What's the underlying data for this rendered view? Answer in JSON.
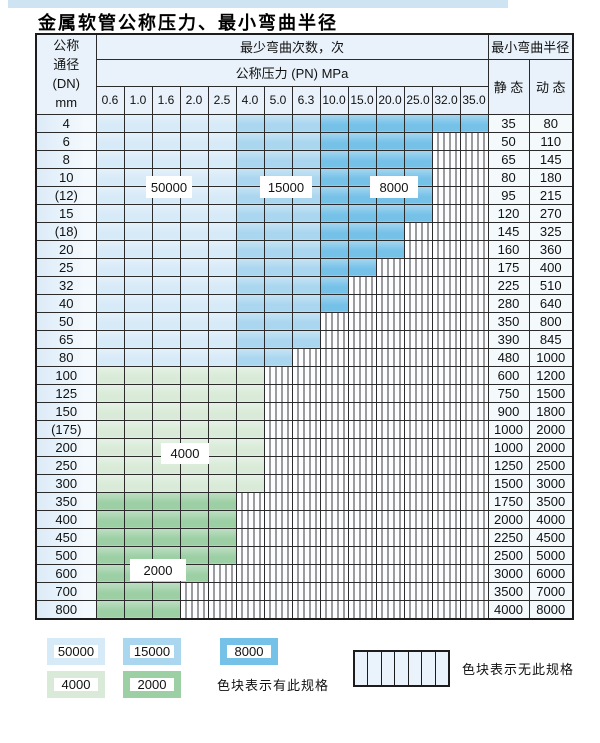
{
  "page": {
    "title": "金属软管公称压力、最小弯曲半径"
  },
  "table": {
    "header": {
      "dn_label_lines": [
        "公称",
        "通径",
        "(DN)",
        "mm"
      ],
      "bend_cycles_label": "最少弯曲次数，次",
      "pressure_label": "公称压力 (PN) MPa",
      "radius_label": "最小弯曲半径",
      "static_label": "静 态",
      "dynamic_label": "动 态",
      "pressure_columns": [
        "0.6",
        "1.0",
        "1.6",
        "2.0",
        "2.5",
        "4.0",
        "5.0",
        "6.3",
        "10.0",
        "15.0",
        "20.0",
        "25.0",
        "32.0",
        "35.0"
      ]
    },
    "cycle_zones": {
      "blue_light_cols": "0.6-2.5",
      "blue_light_cycles": "50000",
      "blue_mid_cols": "4.0-6.3",
      "blue_mid_cycles": "15000",
      "blue_dark_cols": "10.0-35.0",
      "blue_dark_cycles": "8000",
      "green_light_cycles": "4000",
      "green_dark_cycles": "2000"
    },
    "rows": [
      {
        "dn": "4",
        "static": "35",
        "dynamic": "80",
        "zone": "blue",
        "colored_through": 14
      },
      {
        "dn": "6",
        "static": "50",
        "dynamic": "110",
        "zone": "blue",
        "colored_through": 12
      },
      {
        "dn": "8",
        "static": "65",
        "dynamic": "145",
        "zone": "blue",
        "colored_through": 12
      },
      {
        "dn": "10",
        "static": "80",
        "dynamic": "180",
        "zone": "blue",
        "colored_through": 12
      },
      {
        "dn": "(12)",
        "static": "95",
        "dynamic": "215",
        "zone": "blue",
        "colored_through": 12
      },
      {
        "dn": "15",
        "static": "120",
        "dynamic": "270",
        "zone": "blue",
        "colored_through": 12
      },
      {
        "dn": "(18)",
        "static": "145",
        "dynamic": "325",
        "zone": "blue",
        "colored_through": 11
      },
      {
        "dn": "20",
        "static": "160",
        "dynamic": "360",
        "zone": "blue",
        "colored_through": 11
      },
      {
        "dn": "25",
        "static": "175",
        "dynamic": "400",
        "zone": "blue",
        "colored_through": 10
      },
      {
        "dn": "32",
        "static": "225",
        "dynamic": "510",
        "zone": "blue",
        "colored_through": 9
      },
      {
        "dn": "40",
        "static": "280",
        "dynamic": "640",
        "zone": "blue",
        "colored_through": 9
      },
      {
        "dn": "50",
        "static": "350",
        "dynamic": "800",
        "zone": "blue",
        "colored_through": 8
      },
      {
        "dn": "65",
        "static": "390",
        "dynamic": "845",
        "zone": "blue",
        "colored_through": 8
      },
      {
        "dn": "80",
        "static": "480",
        "dynamic": "1000",
        "zone": "blue",
        "colored_through": 7
      },
      {
        "dn": "100",
        "static": "600",
        "dynamic": "1200",
        "zone": "green-light",
        "colored_through": 6
      },
      {
        "dn": "125",
        "static": "750",
        "dynamic": "1500",
        "zone": "green-light",
        "colored_through": 6
      },
      {
        "dn": "150",
        "static": "900",
        "dynamic": "1800",
        "zone": "green-light",
        "colored_through": 6
      },
      {
        "dn": "(175)",
        "static": "1000",
        "dynamic": "2000",
        "zone": "green-light",
        "colored_through": 6
      },
      {
        "dn": "200",
        "static": "1000",
        "dynamic": "2000",
        "zone": "green-light",
        "colored_through": 6
      },
      {
        "dn": "250",
        "static": "1250",
        "dynamic": "2500",
        "zone": "green-light",
        "colored_through": 6
      },
      {
        "dn": "300",
        "static": "1500",
        "dynamic": "3000",
        "zone": "green-light",
        "colored_through": 6
      },
      {
        "dn": "350",
        "static": "1750",
        "dynamic": "3500",
        "zone": "green-dark",
        "colored_through": 5
      },
      {
        "dn": "400",
        "static": "2000",
        "dynamic": "4000",
        "zone": "green-dark",
        "colored_through": 5
      },
      {
        "dn": "450",
        "static": "2250",
        "dynamic": "4500",
        "zone": "green-dark",
        "colored_through": 5
      },
      {
        "dn": "500",
        "static": "2500",
        "dynamic": "5000",
        "zone": "green-dark",
        "colored_through": 5
      },
      {
        "dn": "600",
        "static": "3000",
        "dynamic": "6000",
        "zone": "green-dark",
        "colored_through": 4
      },
      {
        "dn": "700",
        "static": "3500",
        "dynamic": "7000",
        "zone": "green-dark",
        "colored_through": 3
      },
      {
        "dn": "800",
        "static": "4000",
        "dynamic": "8000",
        "zone": "green-dark",
        "colored_through": 3
      }
    ]
  },
  "cycle_labels": {
    "l50000": "50000",
    "l15000": "15000",
    "l8000": "8000",
    "l4000": "4000",
    "l2000": "2000"
  },
  "legend": {
    "row1": [
      {
        "value": "50000",
        "color": "blue_light"
      },
      {
        "value": "15000",
        "color": "blue_mid"
      },
      {
        "value": "8000",
        "color": "blue_dark"
      }
    ],
    "row2": [
      {
        "value": "4000",
        "color": "green_light"
      },
      {
        "value": "2000",
        "color": "green_dark"
      }
    ],
    "has_spec_label": "色块表示有此规格",
    "no_spec_label": "色块表示无此规格"
  },
  "colors": {
    "blue_light": "#d7eaf8",
    "blue_mid": "#aad6f0",
    "blue_dark": "#76c1e8",
    "green_light": "#d9ebd8",
    "green_dark": "#9ccfa4",
    "header_bg": "#e9f2fa",
    "strip": "#cfe4f2"
  }
}
